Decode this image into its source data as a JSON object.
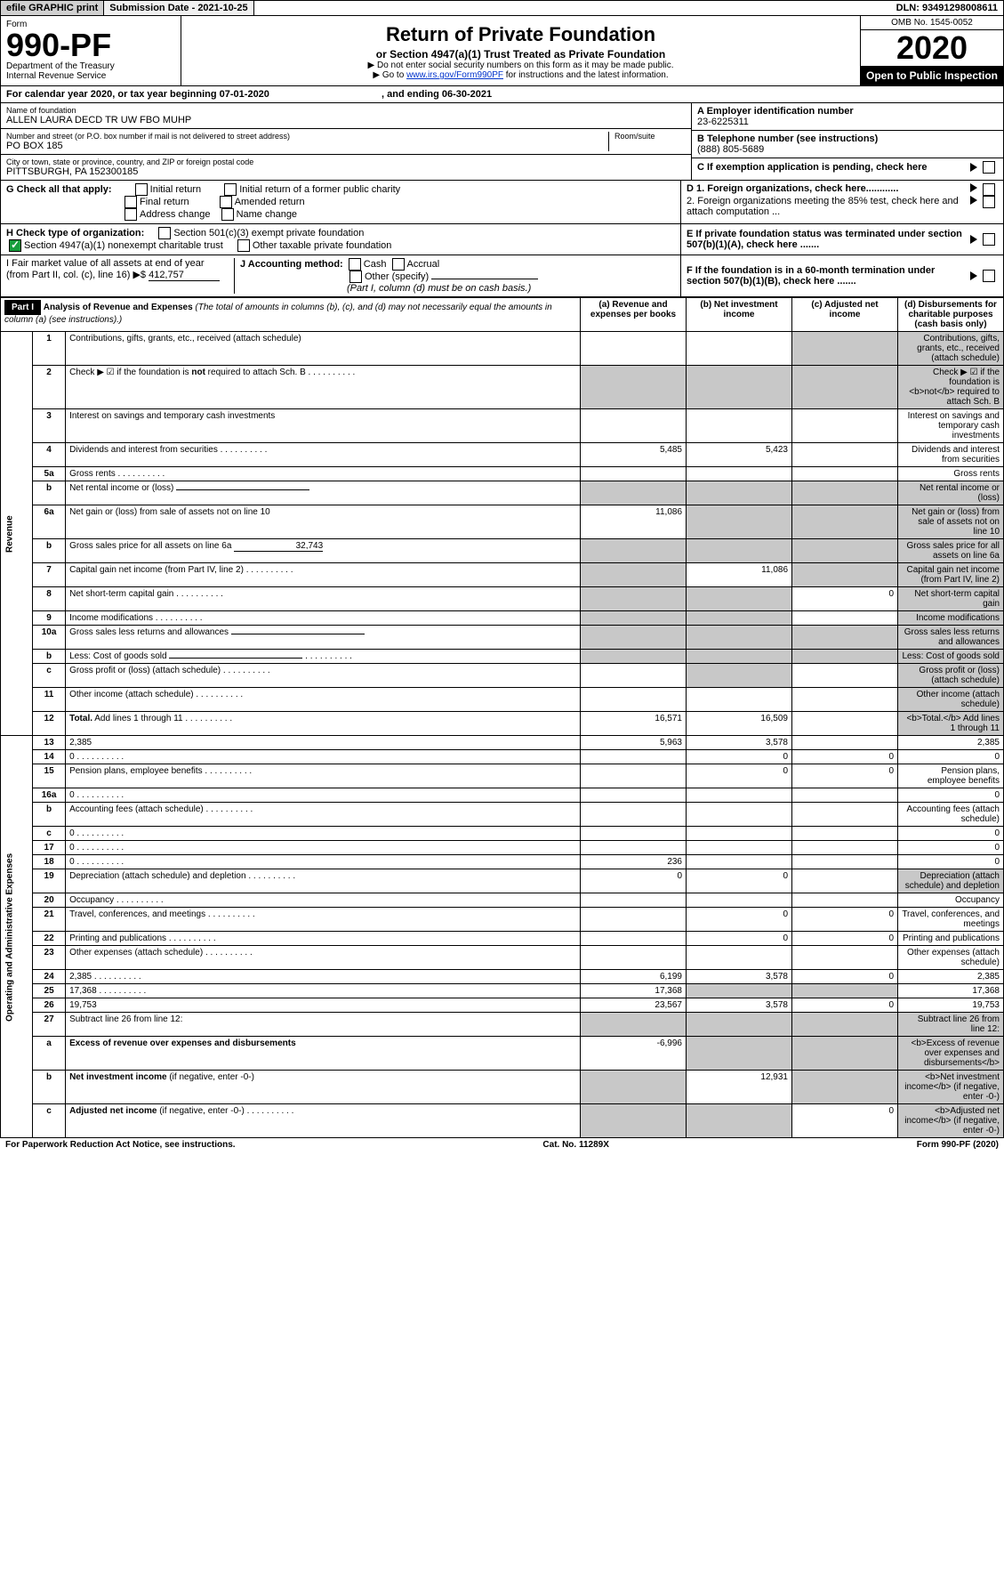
{
  "topbar": {
    "efile": "efile GRAPHIC print",
    "sub_lbl": "Submission Date - 2021-10-25",
    "dln": "DLN: 93491298008611"
  },
  "header": {
    "form_word": "Form",
    "form_no": "990-PF",
    "dept": "Department of the Treasury",
    "irs": "Internal Revenue Service",
    "title": "Return of Private Foundation",
    "subtitle": "or Section 4947(a)(1) Trust Treated as Private Foundation",
    "instr1": "▶ Do not enter social security numbers on this form as it may be made public.",
    "instr2_pre": "▶ Go to ",
    "instr2_link": "www.irs.gov/Form990PF",
    "instr2_post": " for instructions and the latest information.",
    "omb": "OMB No. 1545-0052",
    "year": "2020",
    "open": "Open to Public Inspection"
  },
  "cal": {
    "text": "For calendar year 2020, or tax year beginning 07-01-2020",
    "mid": ", and ending 06-30-2021"
  },
  "name": {
    "lbl": "Name of foundation",
    "val": "ALLEN LAURA DECD TR UW FBO MUHP"
  },
  "ein": {
    "lbl": "A Employer identification number",
    "val": "23-6225311"
  },
  "addr": {
    "lbl": "Number and street (or P.O. box number if mail is not delivered to street address)",
    "room": "Room/suite",
    "val": "PO BOX 185"
  },
  "tel": {
    "lbl": "B Telephone number (see instructions)",
    "val": "(888) 805-5689"
  },
  "city": {
    "lbl": "City or town, state or province, country, and ZIP or foreign postal code",
    "val": "PITTSBURGH, PA  152300185"
  },
  "C": {
    "txt": "C If exemption application is pending, check here"
  },
  "G": {
    "lbl": "G Check all that apply:",
    "o1": "Initial return",
    "o2": "Final return",
    "o3": "Address change",
    "o4": "Initial return of a former public charity",
    "o5": "Amended return",
    "o6": "Name change"
  },
  "D": {
    "l1": "D 1. Foreign organizations, check here............",
    "l2": "2. Foreign organizations meeting the 85% test, check here and attach computation ..."
  },
  "H": {
    "lbl": "H Check type of organization:",
    "o1": "Section 501(c)(3) exempt private foundation",
    "o2": "Section 4947(a)(1) nonexempt charitable trust",
    "o3": "Other taxable private foundation"
  },
  "E": {
    "txt": "E  If private foundation status was terminated under section 507(b)(1)(A), check here ......."
  },
  "I": {
    "lbl": "I Fair market value of all assets at end of year (from Part II, col. (c), line 16)",
    "arrow": "▶$",
    "val": "412,757"
  },
  "J": {
    "lbl": "J Accounting method:",
    "o1": "Cash",
    "o2": "Accrual",
    "o3": "Other (specify)",
    "note": "(Part I, column (d) must be on cash basis.)"
  },
  "F": {
    "txt": "F  If the foundation is in a 60-month termination under section 507(b)(1)(B), check here ......."
  },
  "part1": {
    "badge": "Part I",
    "title": "Analysis of Revenue and Expenses",
    "sub": "(The total of amounts in columns (b), (c), and (d) may not necessarily equal the amounts in column (a) (see instructions).)",
    "ca": "(a)   Revenue and expenses per books",
    "cb": "(b)  Net investment income",
    "cc": "(c)  Adjusted net income",
    "cd": "(d)  Disbursements for charitable purposes (cash basis only)"
  },
  "sections": {
    "rev": "Revenue",
    "exp": "Operating and Administrative Expenses"
  },
  "rows": [
    {
      "n": "1",
      "d": "Contributions, gifts, grants, etc., received (attach schedule)",
      "grey_cd": true
    },
    {
      "n": "2",
      "d": "Check ▶ ☑ if the foundation is <b>not</b> required to attach Sch. B",
      "dots": true,
      "grey_all": true
    },
    {
      "n": "3",
      "d": "Interest on savings and temporary cash investments"
    },
    {
      "n": "4",
      "d": "Dividends and interest from securities",
      "dots": true,
      "a": "5,485",
      "b": "5,423"
    },
    {
      "n": "5a",
      "d": "Gross rents",
      "dots": true
    },
    {
      "n": "b",
      "d": "Net rental income or (loss)",
      "line": true,
      "grey_all": true
    },
    {
      "n": "6a",
      "d": "Net gain or (loss) from sale of assets not on line 10",
      "a": "11,086",
      "grey_bcd": true
    },
    {
      "n": "b",
      "d": "Gross sales price for all assets on line 6a",
      "inline": "32,743",
      "grey_all": true
    },
    {
      "n": "7",
      "d": "Capital gain net income (from Part IV, line 2)",
      "dots": true,
      "b": "11,086",
      "grey_a": true,
      "grey_cd": true
    },
    {
      "n": "8",
      "d": "Net short-term capital gain",
      "dots": true,
      "c": "0",
      "grey_ab": true,
      "grey_d": true
    },
    {
      "n": "9",
      "d": "Income modifications",
      "dots": true,
      "grey_ab": true,
      "grey_d": true
    },
    {
      "n": "10a",
      "d": "Gross sales less returns and allowances",
      "line": true,
      "grey_all": true
    },
    {
      "n": "b",
      "d": "Less: Cost of goods sold",
      "dots": true,
      "line": true,
      "grey_all": true
    },
    {
      "n": "c",
      "d": "Gross profit or (loss) (attach schedule)",
      "dots": true,
      "grey_bd": true
    },
    {
      "n": "11",
      "d": "Other income (attach schedule)",
      "dots": true,
      "grey_d": true
    },
    {
      "n": "12",
      "d": "<b>Total.</b> Add lines 1 through 11",
      "dots": true,
      "a": "16,571",
      "b": "16,509",
      "grey_d": true
    },
    {
      "n": "13",
      "d": "2,385",
      "a": "5,963",
      "b": "3,578"
    },
    {
      "n": "14",
      "d": "0",
      "dots": true,
      "b": "0",
      "c": "0"
    },
    {
      "n": "15",
      "d": "Pension plans, employee benefits",
      "dots": true,
      "b": "0",
      "c": "0"
    },
    {
      "n": "16a",
      "d": "0",
      "dots": true
    },
    {
      "n": "b",
      "d": "Accounting fees (attach schedule)",
      "dots": true
    },
    {
      "n": "c",
      "d": "0",
      "dots": true
    },
    {
      "n": "17",
      "d": "0",
      "dots": true
    },
    {
      "n": "18",
      "d": "0",
      "dots": true,
      "a": "236"
    },
    {
      "n": "19",
      "d": "Depreciation (attach schedule) and depletion",
      "dots": true,
      "a": "0",
      "b": "0",
      "grey_d": true
    },
    {
      "n": "20",
      "d": "Occupancy",
      "dots": true
    },
    {
      "n": "21",
      "d": "Travel, conferences, and meetings",
      "dots": true,
      "b": "0",
      "c": "0"
    },
    {
      "n": "22",
      "d": "Printing and publications",
      "dots": true,
      "b": "0",
      "c": "0"
    },
    {
      "n": "23",
      "d": "Other expenses (attach schedule)",
      "dots": true
    },
    {
      "n": "24",
      "d": "2,385",
      "dots": true,
      "a": "6,199",
      "b": "3,578",
      "c": "0"
    },
    {
      "n": "25",
      "d": "17,368",
      "dots": true,
      "a": "17,368",
      "grey_bc": true
    },
    {
      "n": "26",
      "d": "19,753",
      "a": "23,567",
      "b": "3,578",
      "c": "0"
    },
    {
      "n": "27",
      "d": "Subtract line 26 from line 12:",
      "grey_all": true
    },
    {
      "n": "a",
      "d": "<b>Excess of revenue over expenses and disbursements</b>",
      "a": "-6,996",
      "grey_bcd": true
    },
    {
      "n": "b",
      "d": "<b>Net investment income</b> (if negative, enter -0-)",
      "b": "12,931",
      "grey_a": true,
      "grey_cd": true
    },
    {
      "n": "c",
      "d": "<b>Adjusted net income</b> (if negative, enter -0-)",
      "dots": true,
      "c": "0",
      "grey_ab": true,
      "grey_d": true
    }
  ],
  "foot": {
    "l": "For Paperwork Reduction Act Notice, see instructions.",
    "m": "Cat. No. 11289X",
    "r": "Form 990-PF (2020)"
  }
}
